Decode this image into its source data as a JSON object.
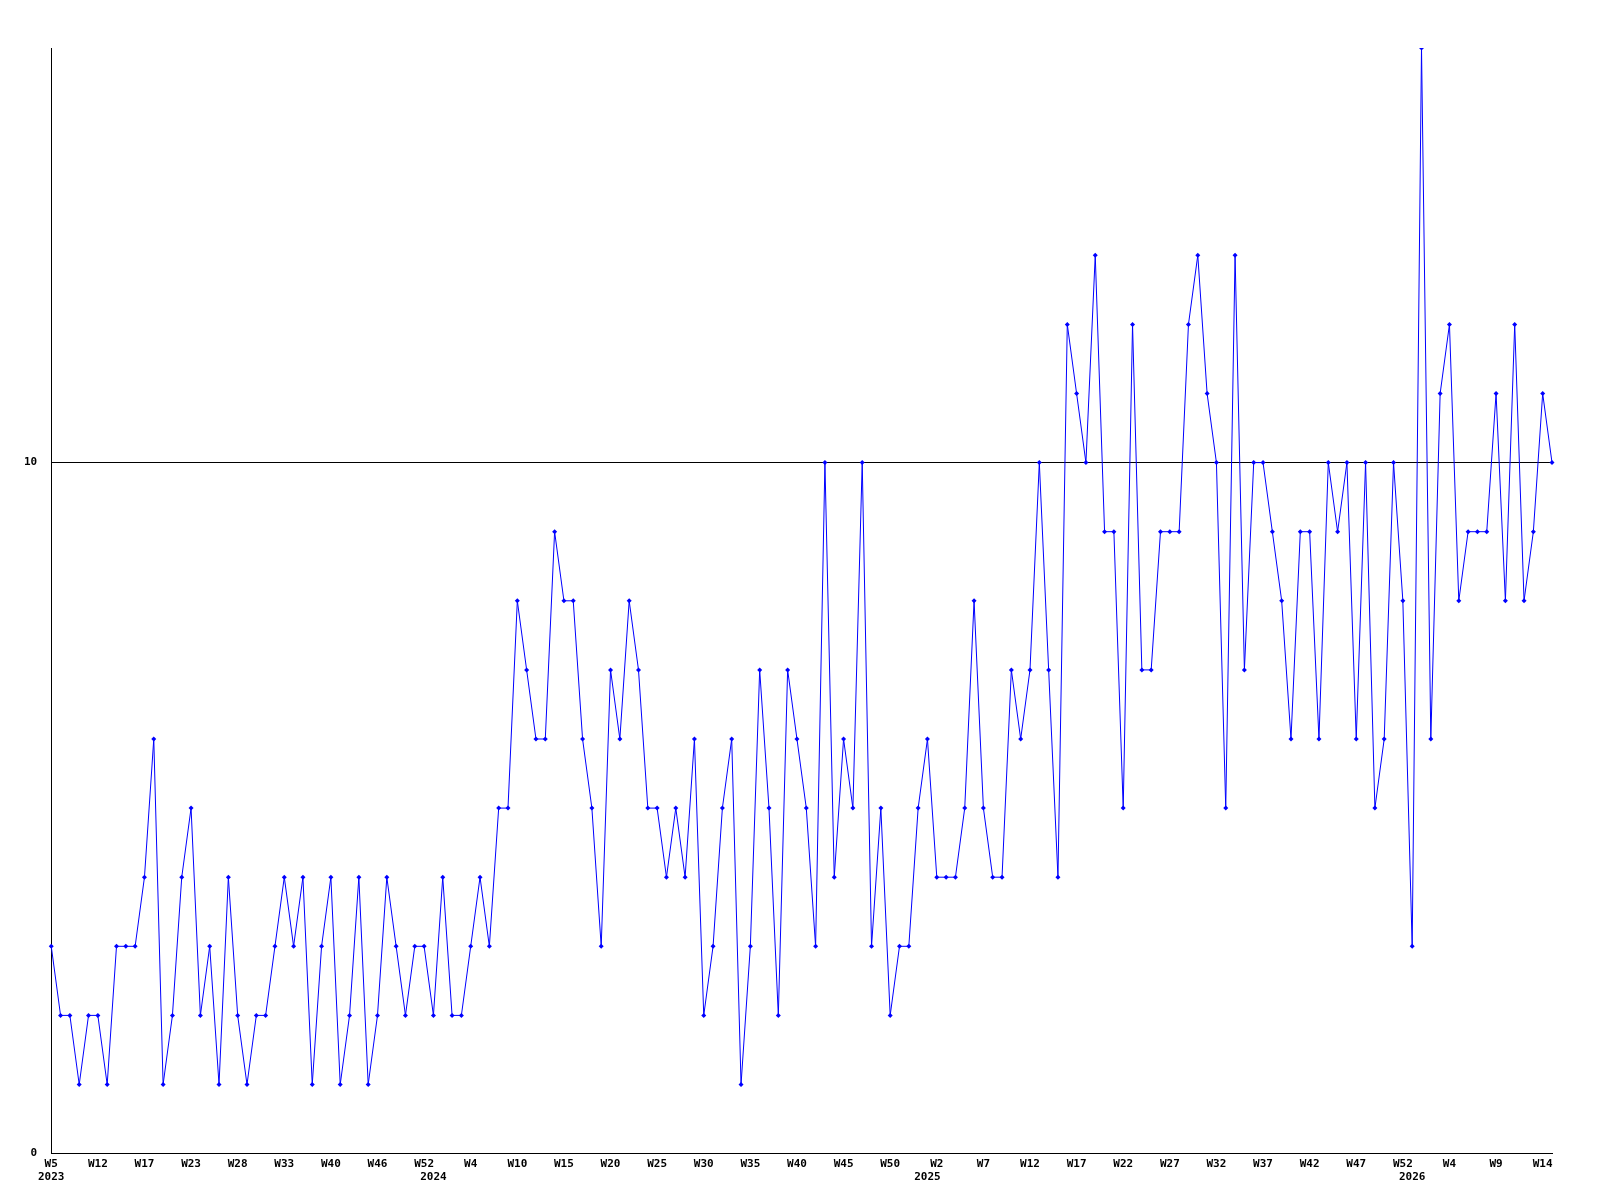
{
  "chart_data": {
    "type": "line",
    "categories": [
      "W5\n2023",
      null,
      null,
      null,
      null,
      "W12",
      null,
      null,
      null,
      null,
      "W17",
      null,
      null,
      null,
      null,
      "W23",
      null,
      null,
      null,
      null,
      "W28",
      null,
      null,
      null,
      null,
      "W33",
      null,
      null,
      null,
      null,
      "W40",
      null,
      null,
      null,
      null,
      "W46",
      null,
      null,
      null,
      null,
      "W52",
      "\n2024",
      null,
      null,
      null,
      "W4",
      null,
      null,
      null,
      null,
      "W10",
      null,
      null,
      null,
      null,
      "W15",
      null,
      null,
      null,
      null,
      "W20",
      null,
      null,
      null,
      null,
      "W25",
      null,
      null,
      null,
      null,
      "W30",
      null,
      null,
      null,
      null,
      "W35",
      null,
      null,
      null,
      null,
      "W40",
      null,
      null,
      null,
      null,
      "W45",
      null,
      null,
      null,
      null,
      "W50",
      null,
      null,
      null,
      "\n2025",
      "W2",
      null,
      null,
      null,
      null,
      "W7",
      null,
      null,
      null,
      null,
      "W12",
      null,
      null,
      null,
      null,
      "W17",
      null,
      null,
      null,
      null,
      "W22",
      null,
      null,
      null,
      null,
      "W27",
      null,
      null,
      null,
      null,
      "W32",
      null,
      null,
      null,
      null,
      "W37",
      null,
      null,
      null,
      null,
      "W42",
      null,
      null,
      null,
      null,
      "W47",
      null,
      null,
      null,
      null,
      "W52",
      "\n2026",
      null,
      null,
      null,
      "W4",
      null,
      null,
      null,
      null,
      "W9",
      null,
      null,
      null,
      null,
      "W14",
      null
    ],
    "series": [
      {
        "color": "#0000ff",
        "values": [
          3,
          2,
          2,
          1,
          2,
          2,
          1,
          3,
          3,
          3,
          4,
          6,
          1,
          2,
          4,
          5,
          2,
          3,
          1,
          4,
          2,
          1,
          2,
          2,
          3,
          4,
          3,
          4,
          1,
          3,
          4,
          1,
          2,
          4,
          1,
          2,
          4,
          3,
          2,
          3,
          3,
          2,
          4,
          2,
          2,
          3,
          4,
          3,
          5,
          5,
          8,
          7,
          6,
          6,
          9,
          8,
          8,
          6,
          5,
          3,
          7,
          6,
          8,
          7,
          5,
          5,
          4,
          5,
          4,
          6,
          2,
          3,
          5,
          6,
          1,
          3,
          7,
          5,
          2,
          7,
          6,
          5,
          3,
          10,
          4,
          6,
          5,
          10,
          3,
          5,
          2,
          3,
          3,
          5,
          6,
          4,
          4,
          4,
          5,
          8,
          5,
          4,
          4,
          7,
          6,
          7,
          10,
          7,
          4,
          12,
          11,
          10,
          13,
          9,
          9,
          5,
          12,
          7,
          7,
          9,
          9,
          9,
          12,
          13,
          11,
          10,
          5,
          13,
          7,
          10,
          10,
          9,
          8,
          6,
          9,
          9,
          6,
          10,
          9,
          10,
          6,
          10,
          5,
          6,
          10,
          8,
          3,
          16,
          6,
          11,
          12,
          8,
          9,
          9,
          9,
          11,
          8,
          12,
          8,
          9,
          11,
          10
        ]
      }
    ],
    "ylim": [
      0,
      16
    ],
    "yticks": [
      0,
      10
    ],
    "grid": "y",
    "legend": false,
    "marker": "diamond",
    "line_style": "solid"
  }
}
